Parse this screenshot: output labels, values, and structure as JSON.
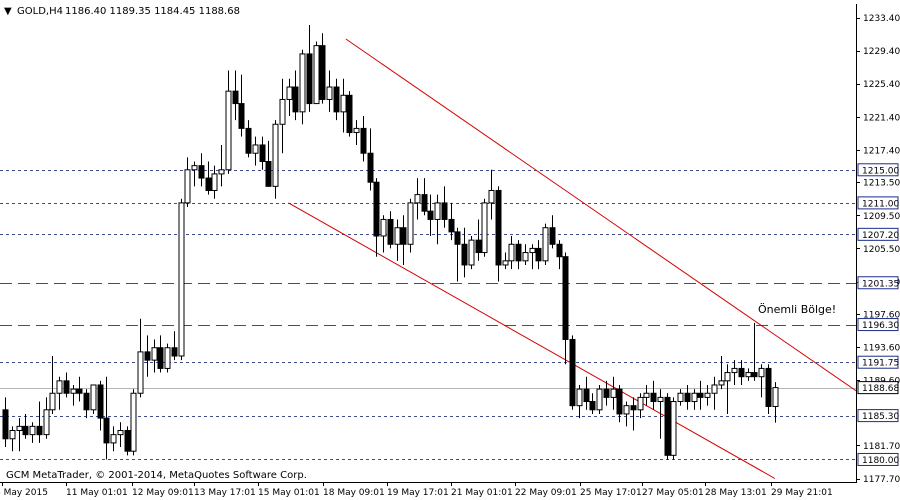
{
  "window": {
    "symbol_label": "GOLD,H4",
    "ohlc_readout": "1186.40 1189.35 1184.45 1188.68",
    "copyright": "GCM MetaTrader, © 2001-2014, MetaQuotes Software Corp."
  },
  "annotation": {
    "text": "Önemli Bölge!"
  },
  "colors": {
    "background": "#ffffff",
    "grid_dashed": "#3f4a8f",
    "channel": "#d40000",
    "bull_body": "#ffffff",
    "bear_body": "#000000",
    "price_tag_bg": "#ffffff",
    "price_tag_border": "#1d2c8a",
    "axis_text": "#000000"
  },
  "chart_data": {
    "type": "candlestick",
    "ylim": [
      1177.7,
      1235.0
    ],
    "y_axis_ticks": [
      "1233.40",
      "1229.40",
      "1225.40",
      "1221.40",
      "1217.40",
      "1213.50",
      "1209.50",
      "1205.50",
      "1201.50",
      "1197.60",
      "1193.60",
      "1189.60",
      "1181.70",
      "1177.70"
    ],
    "x_axis_ticks": [
      "8 May 2015",
      "11 May 01:01",
      "12 May 09:01",
      "13 May 17:01",
      "15 May 01:01",
      "18 May 09:01",
      "19 May 17:01",
      "21 May 01:01",
      "22 May 09:01",
      "25 May 17:01",
      "27 May 05:01",
      "28 May 13:01",
      "29 May 21:01"
    ],
    "levels": [
      {
        "label": "1215.00",
        "value": 1215.0,
        "style": "dotted"
      },
      {
        "label": "1211.00",
        "value": 1211.0,
        "style": "dotted"
      },
      {
        "label": "1207.20",
        "value": 1207.2,
        "style": "dotted"
      },
      {
        "label": "1201.35",
        "value": 1201.35,
        "style": "dashed"
      },
      {
        "label": "1196.30",
        "value": 1196.3,
        "style": "dashed"
      },
      {
        "label": "1191.75",
        "value": 1191.75,
        "style": "dotted"
      },
      {
        "label": "1185.30",
        "value": 1185.3,
        "style": "dotted"
      },
      {
        "label": "1180.00",
        "value": 1180.0,
        "style": "dotted"
      }
    ],
    "current_price": {
      "label": "1188.68",
      "value": 1188.68
    },
    "channel": {
      "upper": [
        {
          "bar": 1,
          "price": 1230.8
        },
        {
          "bar": 999,
          "price": 1187.0
        }
      ],
      "lower": [
        {
          "bar": 1,
          "price": 1211.0
        },
        {
          "bar": 999,
          "price": 1177.7
        }
      ]
    },
    "channel_bars": {
      "upper_start": 50,
      "upper_end": 127,
      "lower_start": 42,
      "lower_end": 108
    },
    "candles": [
      [
        1186.0,
        1187.5,
        1181.5,
        1182.5
      ],
      [
        1182.5,
        1184.0,
        1181.0,
        1183.5
      ],
      [
        1183.5,
        1185.0,
        1181.0,
        1184.0
      ],
      [
        1184.0,
        1185.5,
        1182.5,
        1183.0
      ],
      [
        1183.0,
        1184.5,
        1182.0,
        1184.0
      ],
      [
        1184.0,
        1187.0,
        1182.0,
        1183.0
      ],
      [
        1183.0,
        1187.5,
        1182.5,
        1186.0
      ],
      [
        1186.0,
        1192.5,
        1185.5,
        1188.0
      ],
      [
        1188.0,
        1190.0,
        1186.0,
        1189.5
      ],
      [
        1189.5,
        1190.5,
        1187.5,
        1188.0
      ],
      [
        1188.0,
        1189.0,
        1186.5,
        1188.5
      ],
      [
        1188.5,
        1190.0,
        1187.0,
        1188.0
      ],
      [
        1188.0,
        1188.5,
        1185.0,
        1186.0
      ],
      [
        1186.0,
        1189.0,
        1185.5,
        1189.0
      ],
      [
        1189.0,
        1189.5,
        1183.5,
        1185.0
      ],
      [
        1185.0,
        1190.0,
        1180.0,
        1182.0
      ],
      [
        1182.0,
        1184.0,
        1181.0,
        1183.0
      ],
      [
        1183.0,
        1184.5,
        1181.5,
        1183.5
      ],
      [
        1183.5,
        1184.0,
        1180.5,
        1181.0
      ],
      [
        1181.0,
        1188.5,
        1180.5,
        1188.0
      ],
      [
        1188.0,
        1197.0,
        1187.5,
        1193.0
      ],
      [
        1193.0,
        1195.0,
        1190.0,
        1192.0
      ],
      [
        1192.0,
        1194.5,
        1190.5,
        1193.5
      ],
      [
        1193.5,
        1195.0,
        1190.5,
        1191.0
      ],
      [
        1191.0,
        1194.0,
        1190.5,
        1193.5
      ],
      [
        1193.5,
        1195.5,
        1192.0,
        1192.5
      ],
      [
        1192.5,
        1211.5,
        1192.0,
        1211.0
      ],
      [
        1211.0,
        1216.5,
        1210.5,
        1215.0
      ],
      [
        1215.0,
        1216.0,
        1213.0,
        1215.5
      ],
      [
        1215.5,
        1217.0,
        1213.0,
        1214.0
      ],
      [
        1214.0,
        1216.0,
        1212.0,
        1212.5
      ],
      [
        1212.5,
        1215.5,
        1211.5,
        1214.5
      ],
      [
        1214.5,
        1218.0,
        1213.0,
        1215.0
      ],
      [
        1215.0,
        1227.0,
        1214.5,
        1224.5
      ],
      [
        1224.5,
        1227.0,
        1221.0,
        1223.0
      ],
      [
        1223.0,
        1226.5,
        1219.0,
        1220.0
      ],
      [
        1220.0,
        1221.0,
        1216.5,
        1217.0
      ],
      [
        1217.0,
        1219.0,
        1215.5,
        1218.0
      ],
      [
        1218.0,
        1219.0,
        1215.0,
        1216.0
      ],
      [
        1216.0,
        1218.5,
        1213.0,
        1213.0
      ],
      [
        1213.0,
        1221.0,
        1211.5,
        1220.5
      ],
      [
        1220.5,
        1226.0,
        1217.0,
        1223.5
      ],
      [
        1223.5,
        1226.0,
        1221.5,
        1225.0
      ],
      [
        1225.0,
        1227.0,
        1221.0,
        1222.0
      ],
      [
        1222.0,
        1229.5,
        1220.5,
        1229.0
      ],
      [
        1229.0,
        1232.5,
        1222.0,
        1223.0
      ],
      [
        1223.0,
        1230.5,
        1223.0,
        1230.0
      ],
      [
        1230.0,
        1231.5,
        1223.0,
        1223.5
      ],
      [
        1223.5,
        1227.0,
        1222.0,
        1225.0
      ],
      [
        1225.0,
        1226.0,
        1221.0,
        1222.0
      ],
      [
        1222.0,
        1226.0,
        1219.5,
        1224.0
      ],
      [
        1224.0,
        1224.5,
        1219.0,
        1219.5
      ],
      [
        1219.5,
        1221.0,
        1218.0,
        1220.0
      ],
      [
        1220.0,
        1221.5,
        1216.0,
        1217.0
      ],
      [
        1217.0,
        1220.0,
        1212.5,
        1213.5
      ],
      [
        1213.5,
        1214.0,
        1204.5,
        1207.0
      ],
      [
        1207.0,
        1209.5,
        1205.0,
        1209.0
      ],
      [
        1209.0,
        1210.0,
        1205.5,
        1206.0
      ],
      [
        1206.0,
        1209.0,
        1204.0,
        1208.0
      ],
      [
        1208.0,
        1209.5,
        1203.5,
        1206.0
      ],
      [
        1206.0,
        1211.5,
        1205.0,
        1211.0
      ],
      [
        1211.0,
        1214.0,
        1209.0,
        1212.0
      ],
      [
        1212.0,
        1214.0,
        1209.5,
        1210.0
      ],
      [
        1210.0,
        1212.0,
        1207.0,
        1209.0
      ],
      [
        1209.0,
        1212.0,
        1206.0,
        1211.0
      ],
      [
        1211.0,
        1213.0,
        1208.0,
        1209.0
      ],
      [
        1209.0,
        1211.0,
        1206.5,
        1207.5
      ],
      [
        1207.5,
        1208.0,
        1201.5,
        1206.0
      ],
      [
        1206.0,
        1208.0,
        1202.0,
        1203.5
      ],
      [
        1203.5,
        1207.0,
        1203.0,
        1206.5
      ],
      [
        1206.5,
        1209.0,
        1204.0,
        1205.0
      ],
      [
        1205.0,
        1211.5,
        1204.5,
        1211.0
      ],
      [
        1211.0,
        1215.0,
        1209.0,
        1212.5
      ],
      [
        1212.5,
        1213.0,
        1201.5,
        1203.5
      ],
      [
        1203.5,
        1205.0,
        1203.0,
        1204.0
      ],
      [
        1204.0,
        1207.0,
        1203.0,
        1206.0
      ],
      [
        1206.0,
        1206.5,
        1203.0,
        1204.0
      ],
      [
        1204.0,
        1206.0,
        1203.5,
        1205.0
      ],
      [
        1205.0,
        1206.0,
        1203.0,
        1205.5
      ],
      [
        1205.5,
        1206.5,
        1203.0,
        1204.0
      ],
      [
        1204.0,
        1208.5,
        1203.5,
        1208.0
      ],
      [
        1208.0,
        1209.5,
        1205.5,
        1206.0
      ],
      [
        1206.0,
        1206.5,
        1203.0,
        1204.5
      ],
      [
        1204.5,
        1205.0,
        1191.5,
        1194.5
      ],
      [
        1194.5,
        1195.0,
        1186.0,
        1186.5
      ],
      [
        1186.5,
        1189.0,
        1185.0,
        1188.5
      ],
      [
        1188.5,
        1190.0,
        1186.0,
        1187.0
      ],
      [
        1187.0,
        1188.0,
        1185.5,
        1186.0
      ],
      [
        1186.0,
        1189.0,
        1185.5,
        1188.5
      ],
      [
        1188.5,
        1189.5,
        1186.5,
        1187.5
      ],
      [
        1187.5,
        1190.0,
        1186.0,
        1188.5
      ],
      [
        1188.5,
        1189.0,
        1184.5,
        1185.5
      ],
      [
        1185.5,
        1187.0,
        1184.0,
        1186.5
      ],
      [
        1186.5,
        1187.5,
        1183.5,
        1186.0
      ],
      [
        1186.0,
        1188.0,
        1185.0,
        1187.5
      ],
      [
        1187.5,
        1189.0,
        1186.5,
        1188.0
      ],
      [
        1188.0,
        1189.5,
        1186.0,
        1187.0
      ],
      [
        1187.0,
        1188.5,
        1182.5,
        1187.5
      ],
      [
        1187.5,
        1188.0,
        1180.0,
        1180.5
      ],
      [
        1180.5,
        1187.5,
        1180.0,
        1187.0
      ],
      [
        1187.0,
        1188.5,
        1186.5,
        1188.0
      ],
      [
        1188.0,
        1189.0,
        1186.0,
        1187.0
      ],
      [
        1187.0,
        1188.5,
        1186.0,
        1188.0
      ],
      [
        1188.0,
        1189.5,
        1186.0,
        1187.5
      ],
      [
        1187.5,
        1189.0,
        1186.5,
        1188.0
      ],
      [
        1188.0,
        1190.0,
        1186.0,
        1189.0
      ],
      [
        1189.0,
        1192.5,
        1188.5,
        1189.5
      ],
      [
        1189.5,
        1191.5,
        1185.5,
        1190.5
      ],
      [
        1190.5,
        1192.0,
        1189.0,
        1191.0
      ],
      [
        1191.0,
        1192.0,
        1189.0,
        1190.0
      ],
      [
        1190.0,
        1191.0,
        1189.5,
        1190.5
      ],
      [
        1190.5,
        1196.5,
        1189.5,
        1190.0
      ],
      [
        1190.0,
        1191.5,
        1187.5,
        1191.0
      ],
      [
        1191.0,
        1191.5,
        1185.5,
        1186.4
      ],
      [
        1186.4,
        1189.35,
        1184.45,
        1188.68
      ]
    ]
  }
}
